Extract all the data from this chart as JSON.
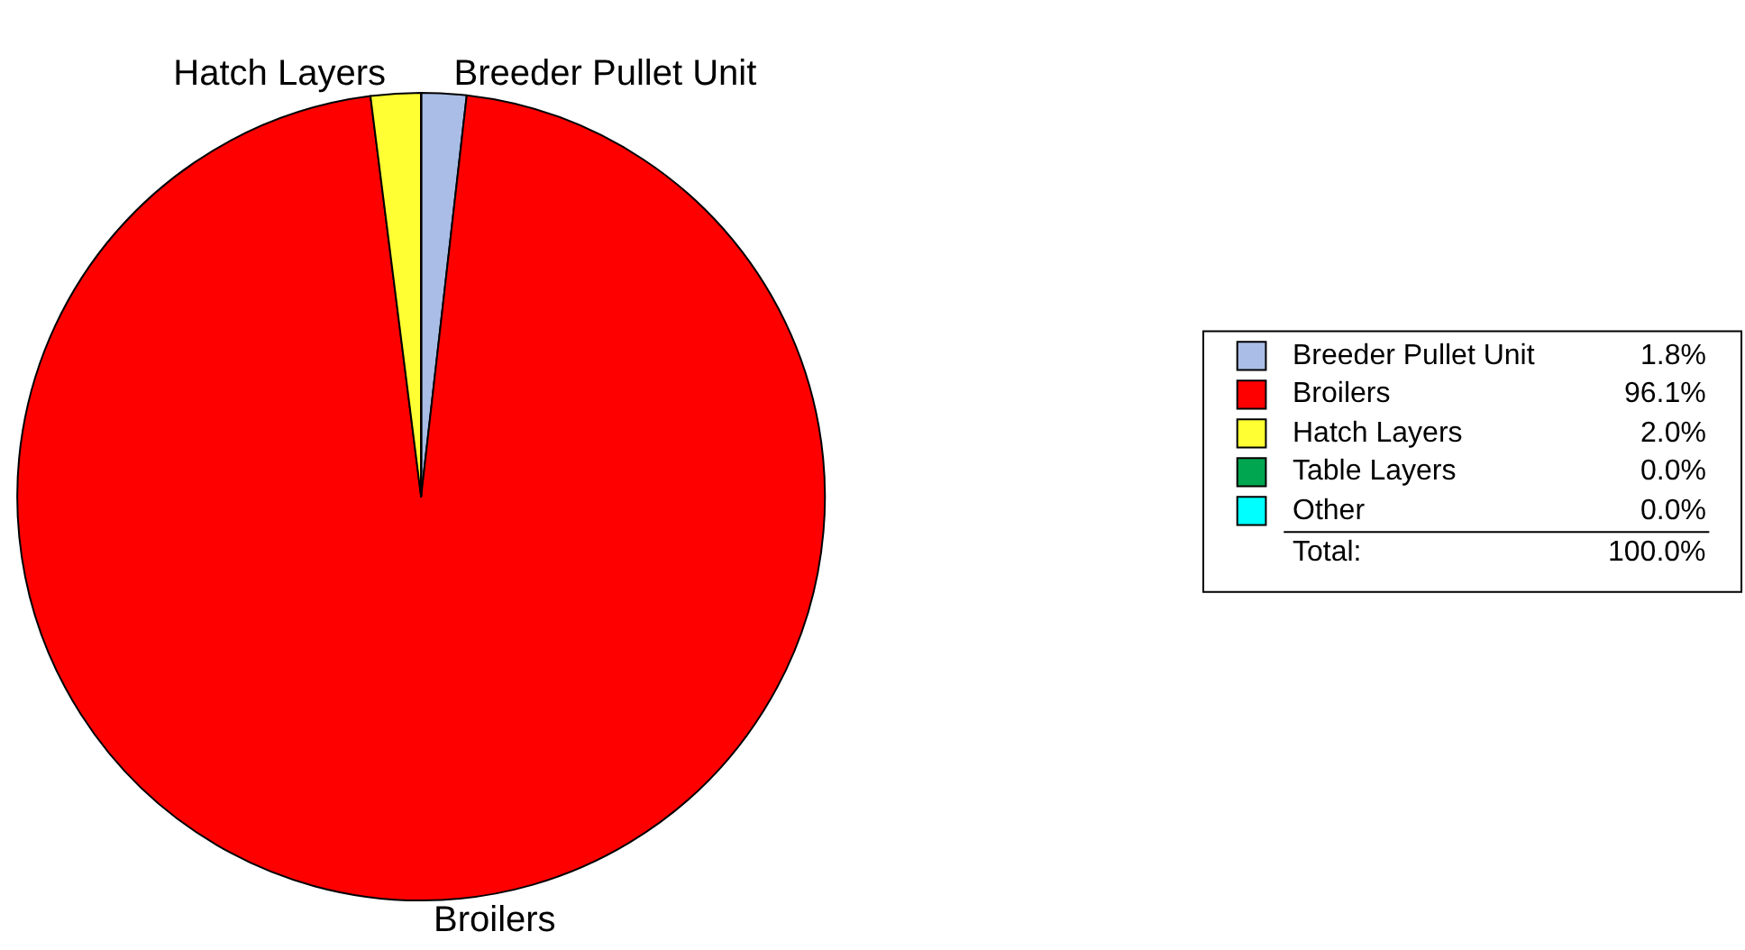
{
  "chart_data": {
    "type": "pie",
    "categories": [
      "Breeder Pullet Unit",
      "Broilers",
      "Hatch Layers",
      "Table Layers",
      "Other"
    ],
    "values": [
      1.8,
      96.1,
      2.0,
      0.0,
      0.0
    ],
    "value_labels": [
      "1.8%",
      "96.1%",
      "2.0%",
      "0.0%",
      "0.0%"
    ],
    "colors": [
      "#a9bde6",
      "#ff0000",
      "#ffff33",
      "#00a650",
      "#00ffff"
    ],
    "annotations": [
      "Total:",
      "100.0%"
    ],
    "legend": "right"
  }
}
